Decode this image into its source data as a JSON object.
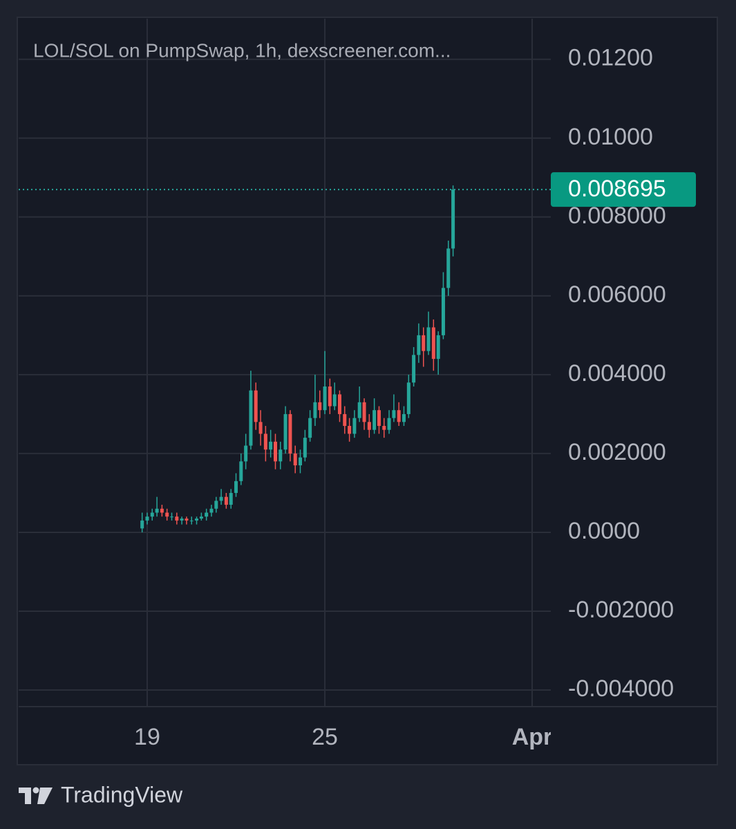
{
  "chart_data": {
    "type": "candlestick",
    "title": "LOL/SOL on PumpSwap, 1h, dexscreener.com...",
    "up_color": "#26a69a",
    "down_color": "#ef5350",
    "grid": true,
    "xlim": [
      14.66,
      32.63
    ],
    "xticks": [
      19,
      25,
      {
        "value": 32,
        "label": "Apr"
      }
    ],
    "ylim": [
      -0.00442,
      0.01303
    ],
    "yticks": [
      {
        "value": -0.004,
        "label": "-0.004000"
      },
      {
        "value": -0.002,
        "label": "-0.002000"
      },
      {
        "value": 0,
        "label": "0.0000"
      },
      {
        "value": 0.002,
        "label": "0.002000"
      },
      {
        "value": 0.004,
        "label": "0.004000"
      },
      {
        "value": 0.006,
        "label": "0.006000"
      },
      {
        "value": 0.008,
        "label": "0.008000"
      },
      {
        "value": 0.01,
        "label": "0.01000"
      },
      {
        "value": 0.012,
        "label": "0.01200"
      }
    ],
    "last_price": 0.008695,
    "x": [
      18.83,
      19,
      19.17,
      19.33,
      19.5,
      19.67,
      19.83,
      20,
      20.17,
      20.33,
      20.5,
      20.67,
      20.83,
      21,
      21.17,
      21.33,
      21.5,
      21.67,
      21.83,
      22,
      22.17,
      22.33,
      22.5,
      22.67,
      22.83,
      23,
      23.17,
      23.33,
      23.5,
      23.67,
      23.83,
      24,
      24.17,
      24.33,
      24.5,
      24.67,
      24.83,
      25,
      25.17,
      25.33,
      25.5,
      25.67,
      25.83,
      26,
      26.17,
      26.33,
      26.5,
      26.67,
      26.83,
      27,
      27.17,
      27.33,
      27.5,
      27.67,
      27.83,
      28,
      28.17,
      28.33,
      28.5,
      28.67,
      28.83,
      29,
      29.17,
      29.33
    ],
    "open": [
      0.0001,
      0.0003,
      0.0004,
      0.0005,
      0.0006,
      0.0005,
      0.0004,
      0.0004,
      0.0003,
      0.00035,
      0.0003,
      0.0003,
      0.00035,
      0.0004,
      0.0005,
      0.0006,
      0.0008,
      0.0009,
      0.0007,
      0.001,
      0.0013,
      0.0018,
      0.0022,
      0.0036,
      0.0028,
      0.0025,
      0.0021,
      0.0023,
      0.0018,
      0.0021,
      0.003,
      0.002,
      0.0017,
      0.0019,
      0.0024,
      0.0029,
      0.0033,
      0.0031,
      0.0037,
      0.0032,
      0.0035,
      0.003,
      0.0027,
      0.0025,
      0.0029,
      0.0033,
      0.0028,
      0.0026,
      0.0031,
      0.0027,
      0.0026,
      0.0029,
      0.0031,
      0.0028,
      0.003,
      0.0038,
      0.0045,
      0.005,
      0.0046,
      0.0052,
      0.0044,
      0.005,
      0.0062,
      0.0072
    ],
    "high": [
      0.0005,
      0.0005,
      0.0006,
      0.0009,
      0.0007,
      0.0006,
      0.0005,
      0.0005,
      0.0004,
      0.0004,
      0.0004,
      0.0004,
      0.0005,
      0.0006,
      0.0007,
      0.0009,
      0.0011,
      0.001,
      0.0011,
      0.0015,
      0.002,
      0.0025,
      0.0041,
      0.0038,
      0.0031,
      0.0027,
      0.0026,
      0.0025,
      0.0023,
      0.0032,
      0.0031,
      0.0022,
      0.0021,
      0.0026,
      0.0031,
      0.004,
      0.0036,
      0.0046,
      0.0039,
      0.0038,
      0.0036,
      0.0032,
      0.0029,
      0.0031,
      0.0037,
      0.0034,
      0.003,
      0.0034,
      0.0032,
      0.0029,
      0.0031,
      0.0035,
      0.0033,
      0.0032,
      0.004,
      0.0047,
      0.0053,
      0.0052,
      0.0056,
      0.0054,
      0.0051,
      0.0066,
      0.0074,
      0.0088
    ],
    "low": [
      0,
      0.0002,
      0.0003,
      0.0004,
      0.0004,
      0.0003,
      0.0003,
      0.0002,
      0.0002,
      0.0002,
      0.0002,
      0.0002,
      0.0003,
      0.0003,
      0.0004,
      0.0005,
      0.0007,
      0.0006,
      0.0006,
      0.0009,
      0.0012,
      0.0016,
      0.0021,
      0.0026,
      0.0022,
      0.0018,
      0.0019,
      0.0016,
      0.0016,
      0.002,
      0.0018,
      0.0015,
      0.0015,
      0.0018,
      0.0023,
      0.0027,
      0.0029,
      0.003,
      0.003,
      0.0031,
      0.0028,
      0.0025,
      0.0023,
      0.0024,
      0.0028,
      0.0026,
      0.0024,
      0.0025,
      0.0025,
      0.0024,
      0.0025,
      0.0028,
      0.0027,
      0.0027,
      0.0029,
      0.0037,
      0.0043,
      0.0042,
      0.0045,
      0.0041,
      0.004,
      0.0049,
      0.006,
      0.007
    ],
    "close": [
      0.0003,
      0.0004,
      0.0005,
      0.0006,
      0.0005,
      0.0004,
      0.0004,
      0.0003,
      0.00035,
      0.0003,
      0.0003,
      0.00035,
      0.0004,
      0.0005,
      0.0006,
      0.0008,
      0.0009,
      0.0007,
      0.001,
      0.0013,
      0.0018,
      0.0022,
      0.0036,
      0.0028,
      0.0025,
      0.0021,
      0.0023,
      0.0018,
      0.0021,
      0.003,
      0.002,
      0.0017,
      0.0019,
      0.0024,
      0.0029,
      0.0033,
      0.0031,
      0.0037,
      0.0032,
      0.0035,
      0.003,
      0.0027,
      0.0025,
      0.0029,
      0.0033,
      0.0028,
      0.0026,
      0.0031,
      0.0027,
      0.0026,
      0.0029,
      0.0031,
      0.0028,
      0.003,
      0.0038,
      0.0045,
      0.005,
      0.0046,
      0.0052,
      0.0044,
      0.005,
      0.0062,
      0.0072,
      0.008695
    ]
  },
  "footer": {
    "brand": "TradingView"
  }
}
